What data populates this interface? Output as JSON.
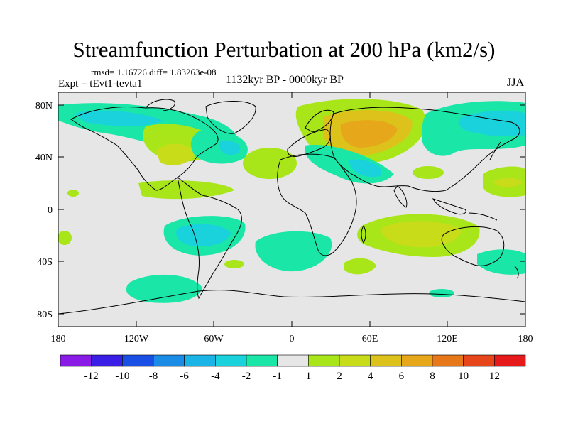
{
  "title": "Streamfunction Perturbation at 200 hPa (km2/s)",
  "stats": "rmsd= 1.16726 diff= 1.83263e-08",
  "experiment": "Expt = tEvt1-tevta1",
  "period": "1132kyr BP - 0000kyr BP",
  "season": "JJA",
  "map": {
    "projection": "cylindrical equidistant",
    "lon_range": [
      -180,
      180
    ],
    "lat_range": [
      -90,
      90
    ],
    "ocean_color": "#e6e6e6",
    "coastline_color": "#000000",
    "lat_ticks": [
      {
        "lat": 80,
        "label": "80N"
      },
      {
        "lat": 40,
        "label": "40N"
      },
      {
        "lat": 0,
        "label": "0"
      },
      {
        "lat": -40,
        "label": "40S"
      },
      {
        "lat": -80,
        "label": "80S"
      }
    ],
    "lon_ticks": [
      {
        "lon": -180,
        "label": "180"
      },
      {
        "lon": -120,
        "label": "120W"
      },
      {
        "lon": -60,
        "label": "60W"
      },
      {
        "lon": 0,
        "label": "0"
      },
      {
        "lon": 60,
        "label": "60E"
      },
      {
        "lon": 120,
        "label": "120E"
      },
      {
        "lon": 180,
        "label": "180"
      }
    ]
  },
  "colorbar": {
    "colors": [
      "#8a1ae6",
      "#3a1ee6",
      "#1a4fe6",
      "#1a8ce6",
      "#1ab4e6",
      "#1ad2dc",
      "#1ae6a8",
      "#e6e6e6",
      "#a8e61a",
      "#c8dc1a",
      "#dcc21a",
      "#e6a81a",
      "#e6781a",
      "#e6461a",
      "#e61a1a"
    ],
    "labels": [
      "-12",
      "-10",
      "-8",
      "-6",
      "-4",
      "-2",
      "-1",
      "1",
      "2",
      "4",
      "6",
      "8",
      "10",
      "12"
    ]
  },
  "chart_data": {
    "type": "heatmap",
    "units": "km2/s",
    "levels": [
      -12,
      -10,
      -8,
      -6,
      -4,
      -2,
      -1,
      1,
      2,
      4,
      6,
      8,
      10,
      12
    ],
    "anomalies": [
      {
        "region": "Northern Eurasia (~30-70E, 60N)",
        "lon": 50,
        "lat": 60,
        "peak": 4,
        "sign": "positive"
      },
      {
        "region": "Eastern North America (~80W, 40N)",
        "lon": -75,
        "lat": 40,
        "peak": 2,
        "sign": "positive"
      },
      {
        "region": "Southern Indian Ocean / S Africa (~60-90E, 30S)",
        "lon": 80,
        "lat": -30,
        "peak": 2,
        "sign": "positive"
      },
      {
        "region": "Western Pacific (~160E, 30N)",
        "lon": 165,
        "lat": 30,
        "peak": 2,
        "sign": "positive"
      },
      {
        "region": "Tropical SE Pacific (~110W, 20S)",
        "lon": -110,
        "lat": -20,
        "peak": -4,
        "sign": "negative"
      },
      {
        "region": "North Pacific / Arctic (~150-180W, 60-80N)",
        "lon": -150,
        "lat": 65,
        "peak": -2,
        "sign": "negative"
      },
      {
        "region": "South Atlantic (~10W, 30S)",
        "lon": 0,
        "lat": -30,
        "peak": -2,
        "sign": "negative"
      },
      {
        "region": "Southern Pacific (~120W, 65S)",
        "lon": -125,
        "lat": -68,
        "peak": -2,
        "sign": "negative"
      },
      {
        "region": "NE Asia (~130-170E, 60N)",
        "lon": 145,
        "lat": 60,
        "peak": -2,
        "sign": "negative"
      }
    ]
  }
}
